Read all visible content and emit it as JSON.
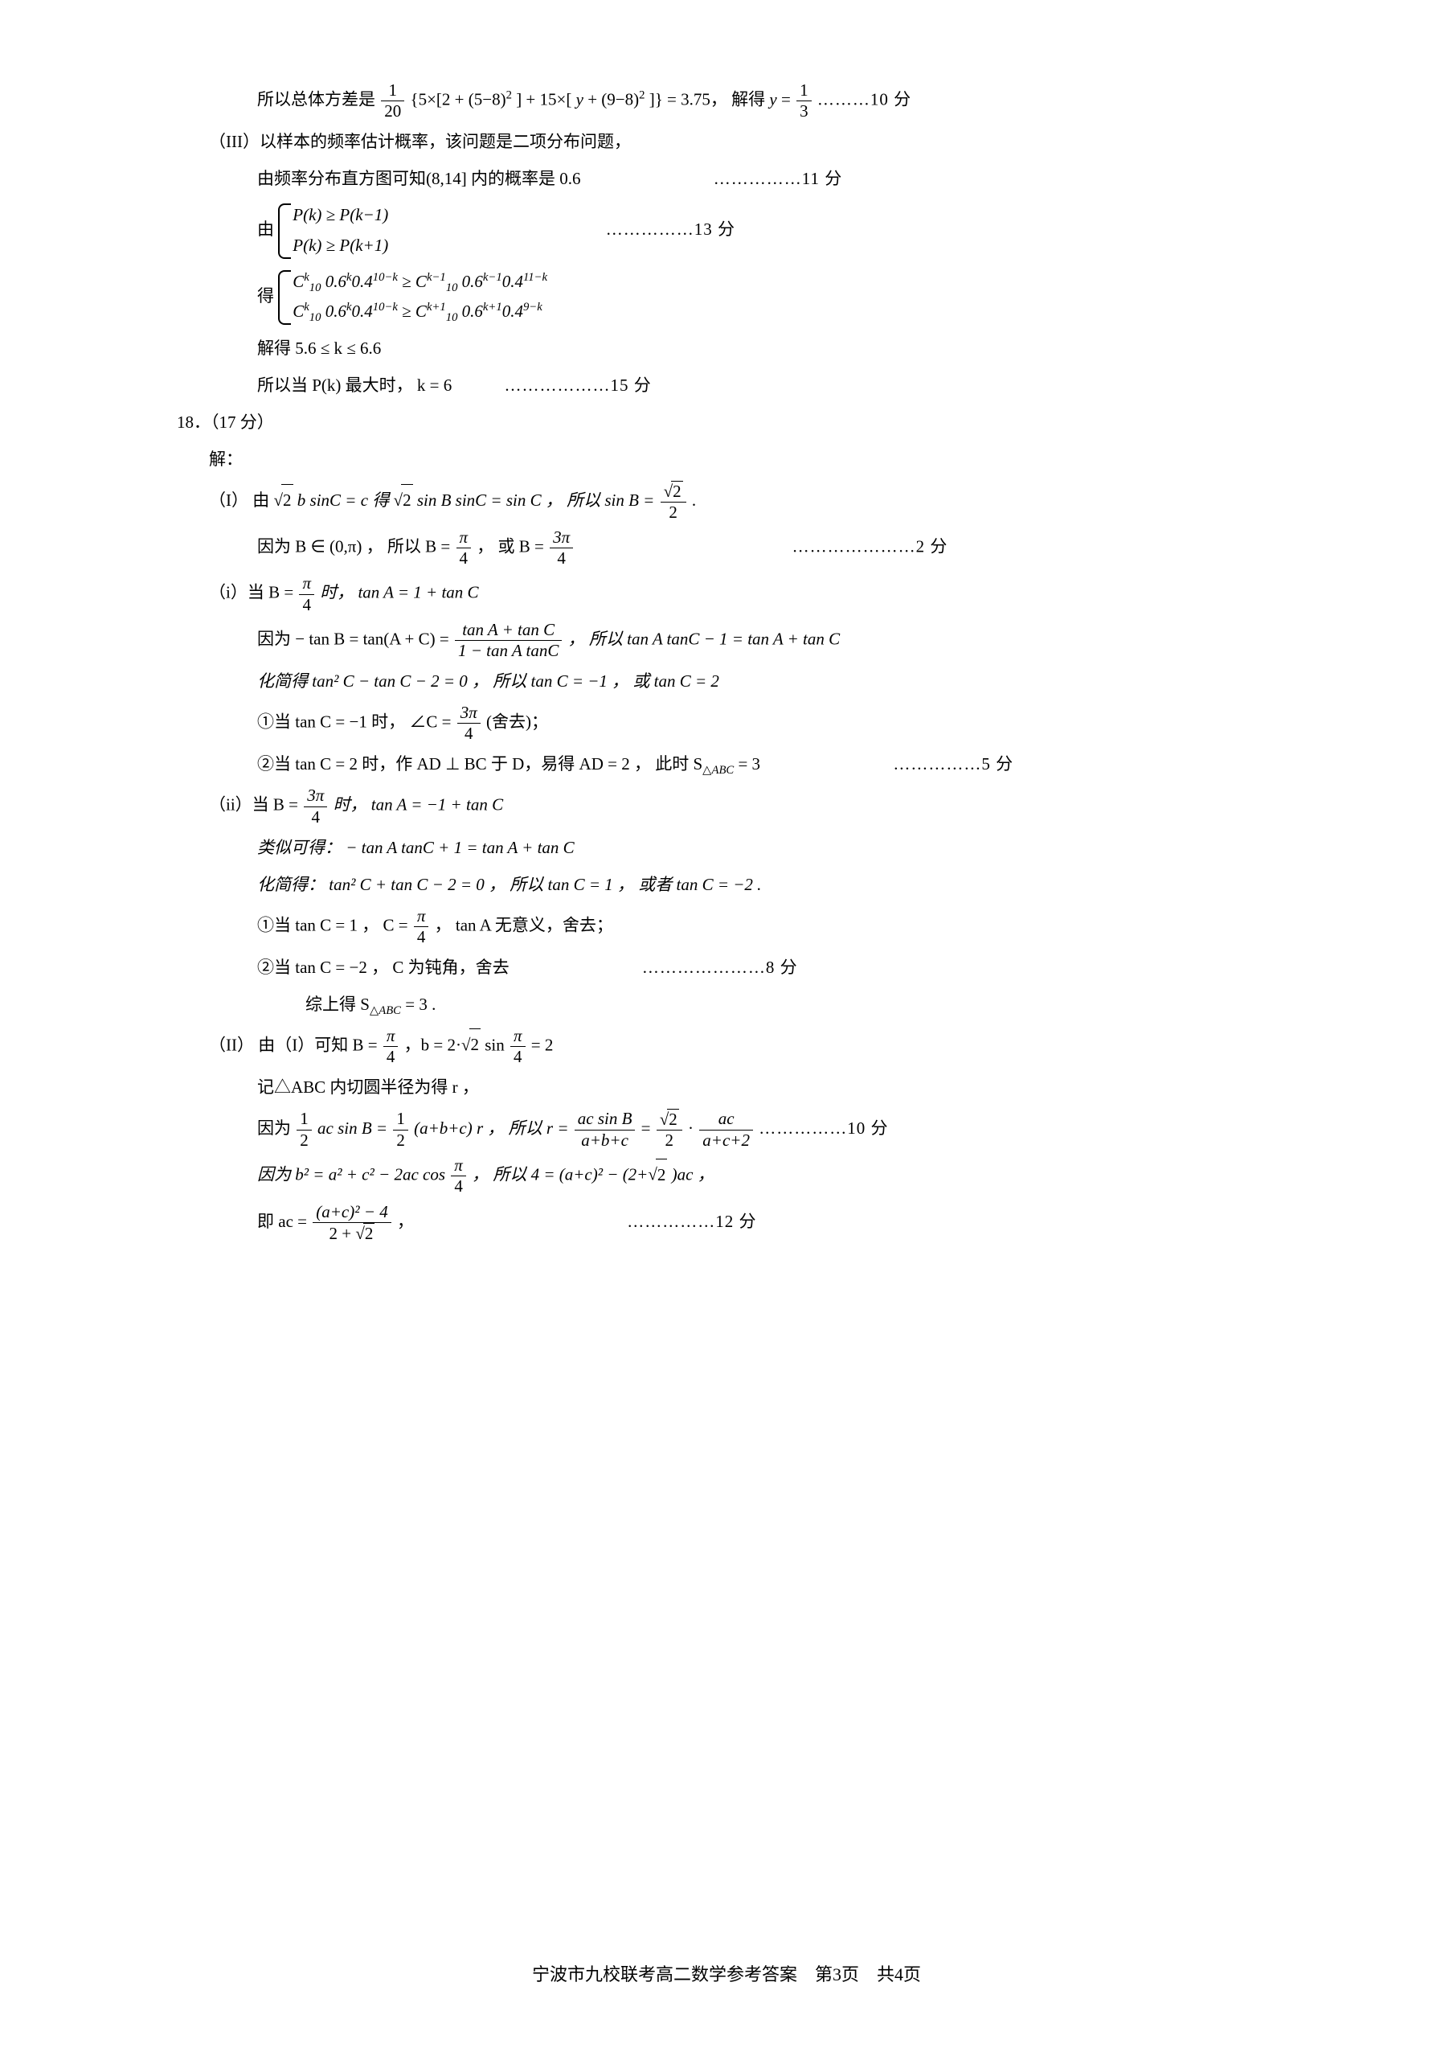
{
  "footer": "宁波市九校联考高二数学参考答案　第3页　共4页",
  "lines": {
    "l1a": "所以总体方差是 ",
    "f1n": "1",
    "f1d": "20",
    "l1b": "{5×[2 + (5−8)",
    "l1c": "] + 15×[ ",
    "l1y": "y",
    "l1d": " + (9−8)",
    "l1e": "]} = 3.75， 解得 ",
    "l1f": " = ",
    "f2n": "1",
    "f2d": "3",
    "l1s": " ………10 分",
    "l2": "（III）以样本的频率估计概率，该问题是二项分布问题，",
    "l3": "由频率分布直方图可知(8,14] 内的概率是 0.6",
    "l3s": "……………11 分",
    "l4pre": "由",
    "b1r1": "P(k) ≥ P(k−1)",
    "b1r2": "P(k) ≥ P(k+1)",
    "l4s": "……………13 分",
    "l5pre": "得",
    "b2r1a": "C",
    "b2r1b": " 0.6",
    "b2r1c": "0.4",
    "b2r1d": " ≥ C",
    "b2r1e": " 0.6",
    "b2r1f": "0.4",
    "b2r2a": "C",
    "b2r2b": " 0.6",
    "b2r2c": "0.4",
    "b2r2d": " ≥ C",
    "b2r2e": " 0.6",
    "b2r2f": "0.4",
    "l6": "解得 5.6 ≤ k ≤ 6.6",
    "l7a": "所以当 P(k) 最大时， k = 6",
    "l7s": " ………………15 分",
    "p18": "18．（17 分）",
    "p18s": "解：",
    "I1a": "（I） 由 √",
    "I1sqrt1": "2",
    "I1b": "b sinC = c 得 √",
    "I1sqrt2": "2",
    "I1c": " sin B sinC = sin C ， 所以 sin B = ",
    "I1fn": "√2",
    "I1fd": "2",
    "I1d": " .",
    "I2a": "因为 B ∈ (0,π) ， 所以 B = ",
    "I2fn": "π",
    "I2fd": "4",
    "I2b": " ， 或 B = ",
    "I2gn": "3π",
    "I2gd": "4",
    "I2s": "…………………2 分",
    "i1a": "（i）当 B = ",
    "i1fn": "π",
    "i1fd": "4",
    "i1b": " 时， tan A = 1 + tan C",
    "i2a": "因为 − tan B = tan(A + C) = ",
    "i2fn": "tan A + tan C",
    "i2fd": "1 − tan A tanC",
    "i2b": " ， 所以 tan A tanC − 1 = tan A + tan C",
    "i3": "化简得 tan² C − tan C − 2 = 0 ， 所以 tan C = −1 ， 或 tan C = 2",
    "i4a": "①当 tan C = −1 时， ∠C = ",
    "i4fn": "3π",
    "i4fd": "4",
    "i4b": " (舍去)；",
    "i5a": "②当 tan C = 2 时，作 AD ⊥ BC 于 D，易得 AD = 2 ， 此时 S",
    "i5b": " = 3",
    "i5s": "……………5 分",
    "ii1a": "（ii）当 B = ",
    "ii1fn": "3π",
    "ii1fd": "4",
    "ii1b": " 时， tan A = −1 + tan C",
    "ii2": "类似可得： − tan A tanC + 1 = tan A + tan C",
    "ii3": "化简得： tan² C + tan C − 2 = 0 ， 所以 tan C = 1 ， 或者 tan C = −2 .",
    "ii4a": "①当 tan C = 1 ， C = ",
    "ii4fn": "π",
    "ii4fd": "4",
    "ii4b": " ， tan A 无意义，舍去；",
    "ii5a": "②当 tan C = −2 ， C 为钝角，舍去",
    "ii5s": "…………………8 分",
    "ii6a": "综上得 S",
    "ii6b": " = 3 .",
    "II1a": "（II） 由（I）可知 B = ",
    "II1fn": "π",
    "II1fd": "4",
    "II1b": " ，b = 2·√",
    "II1sqrt": "2",
    "II1c": " sin ",
    "II1gn": "π",
    "II1gd": "4",
    "II1d": " = 2",
    "II2": "记△ABC 内切圆半径为得 r ，",
    "II3a": "因为 ",
    "II3fn1": "1",
    "II3fd1": "2",
    "II3b": " ac sin B = ",
    "II3fn2": "1",
    "II3fd2": "2",
    "II3c": " (a+b+c) r ， 所以 r = ",
    "II3fn3": "ac sin B",
    "II3fd3": "a+b+c",
    "II3d": " = ",
    "II3fn4": "√2",
    "II3fd4": "2",
    "II3e": " · ",
    "II3fn5": "ac",
    "II3fd5": "a+c+2",
    "II3s": "……………10 分",
    "II4a": "因为 b² = a² + c² − 2ac cos ",
    "II4fn": "π",
    "II4fd": "4",
    "II4b": " ， 所以 4 = (a+c)² − (2+√",
    "II4sqrt": "2",
    "II4c": ")ac ，",
    "II5a": "即 ac = ",
    "II5fn": "(a+c)² − 4",
    "II5fd": "2 + √2",
    "II5b": " ，",
    "II5s": "……………12 分"
  }
}
